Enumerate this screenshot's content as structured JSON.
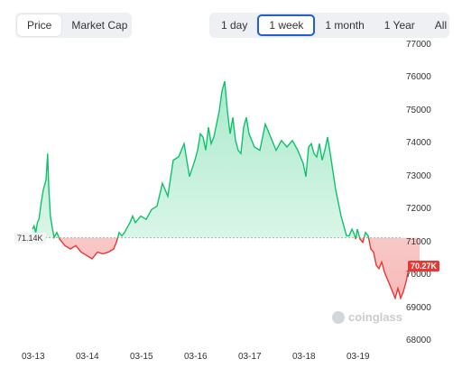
{
  "tabs_metric": [
    {
      "label": "Price",
      "active": true
    },
    {
      "label": "Market Cap",
      "active": false
    }
  ],
  "tabs_range": [
    {
      "label": "1 day",
      "active": false
    },
    {
      "label": "1 week",
      "active": true
    },
    {
      "label": "1 month",
      "active": false
    },
    {
      "label": "1 Year",
      "active": false
    },
    {
      "label": "All",
      "active": false
    }
  ],
  "badges": {
    "baseline": "71.14K",
    "current": "70.27K"
  },
  "watermark": "coinglass",
  "colors": {
    "up": "#0ec26b",
    "down": "#e53935",
    "baseline": "#b0b0b0"
  },
  "chart_data": {
    "type": "area",
    "baseline": 71140,
    "ylim": [
      68000,
      77000
    ],
    "yticks": [
      "77000",
      "76000",
      "75000",
      "74000",
      "73000",
      "72000",
      "71000",
      "70000",
      "69000",
      "68000"
    ],
    "xticks": [
      "03-13",
      "03-14",
      "03-15",
      "03-16",
      "03-17",
      "03-18",
      "03-19"
    ],
    "series": [
      {
        "x_days": [
          0.0,
          0.03,
          0.06,
          0.09,
          0.12,
          0.16,
          0.2,
          0.25,
          0.28,
          0.3,
          0.33,
          0.37,
          0.4,
          0.45,
          0.5,
          0.55,
          0.6,
          0.7,
          0.8,
          0.9,
          1.0,
          1.1,
          1.2,
          1.3,
          1.4,
          1.5,
          1.55,
          1.6,
          1.65,
          1.7,
          1.8,
          1.85,
          1.9,
          1.95,
          2.0,
          2.1,
          2.2,
          2.3,
          2.4,
          2.5,
          2.6,
          2.7,
          2.8,
          2.9,
          3.0,
          3.05,
          3.1,
          3.15,
          3.2,
          3.25,
          3.3,
          3.35,
          3.4,
          3.45,
          3.5,
          3.55,
          3.6,
          3.65,
          3.7,
          3.75,
          3.8,
          3.85,
          3.9,
          3.95,
          4.0,
          4.1,
          4.2,
          4.3,
          4.4,
          4.5,
          4.6,
          4.7,
          4.8,
          4.9,
          5.0,
          5.05,
          5.1,
          5.15,
          5.2,
          5.25,
          5.3,
          5.35,
          5.4,
          5.45,
          5.5,
          5.6,
          5.7,
          5.75,
          5.8,
          5.85,
          5.9,
          5.93,
          5.97,
          6.0,
          6.05,
          6.1,
          6.15,
          6.2,
          6.25,
          6.3,
          6.35,
          6.4,
          6.45,
          6.5,
          6.55,
          6.6,
          6.65,
          6.7,
          6.75,
          6.8,
          6.85,
          6.9,
          6.95,
          7.0,
          7.05,
          7.1,
          7.15
        ],
        "values": [
          71400,
          71500,
          71300,
          71600,
          71700,
          72200,
          72600,
          72900,
          73700,
          72700,
          71800,
          71400,
          71150,
          71300,
          71100,
          71000,
          70900,
          70800,
          70900,
          70700,
          70600,
          70500,
          70700,
          70650,
          70700,
          70800,
          71000,
          71300,
          71200,
          71300,
          71600,
          71800,
          71600,
          71700,
          71800,
          71700,
          72000,
          72100,
          72800,
          72400,
          73500,
          73600,
          74000,
          73000,
          73500,
          73800,
          74300,
          74200,
          73800,
          74500,
          74000,
          74200,
          74600,
          75000,
          75600,
          75900,
          75000,
          74300,
          74800,
          74100,
          73800,
          73700,
          74500,
          74800,
          74300,
          73900,
          73800,
          74600,
          74200,
          73800,
          74100,
          73900,
          74100,
          73800,
          73400,
          73000,
          73900,
          74000,
          73700,
          73600,
          74000,
          73500,
          73800,
          74200,
          73700,
          72600,
          71800,
          71500,
          71200,
          71200,
          71400,
          71300,
          71100,
          71400,
          71100,
          71000,
          71300,
          71200,
          70800,
          70700,
          70300,
          70200,
          70400,
          70100,
          69900,
          69700,
          69500,
          69300,
          69600,
          69300,
          69500,
          69800,
          70200,
          70400,
          70100,
          70300,
          70270
        ]
      }
    ]
  }
}
